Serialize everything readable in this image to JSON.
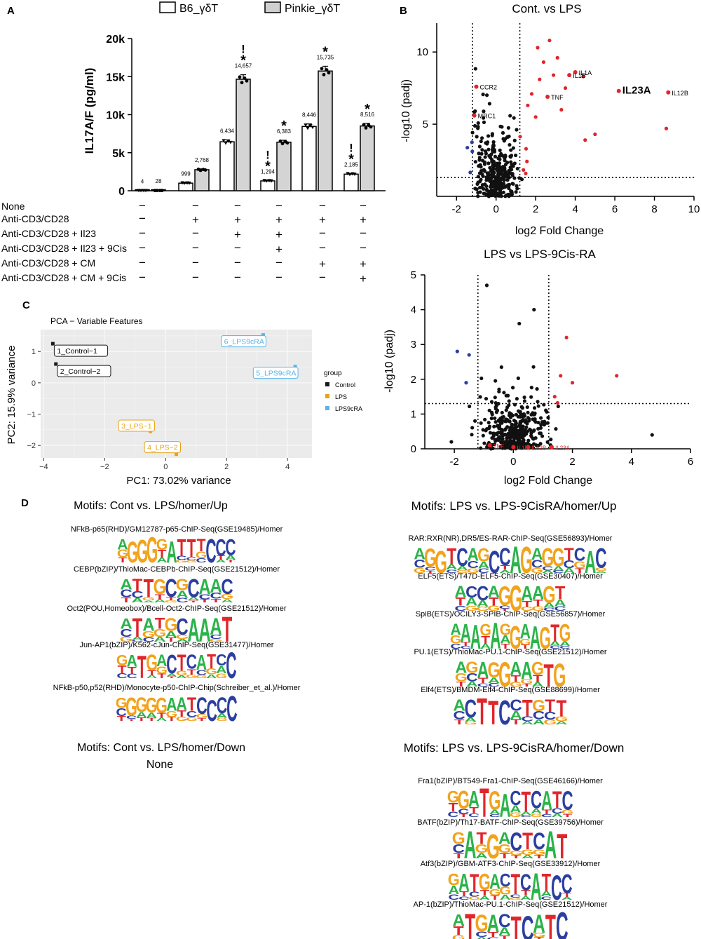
{
  "chart_data": [
    {
      "panel": "A",
      "type": "bar",
      "ylabel": "IL17A/F (pg/ml)",
      "ylim": [
        0,
        20000
      ],
      "yticks": [
        "0",
        "5k",
        "10k",
        "15k",
        "20k"
      ],
      "ytick_values": [
        0,
        5000,
        10000,
        15000,
        20000
      ],
      "legend": [
        "B6_γδT",
        "Pinkie_γδT"
      ],
      "conditions": [
        "None",
        "Anti-CD3/CD28",
        "Anti-CD3/CD28 + Il23",
        "Anti-CD3/CD28 + Il23 + 9Cis",
        "Anti-CD3/CD28 + CM",
        "Anti-CD3/CD28 + CM + 9Cis"
      ],
      "design": [
        [
          "−",
          "−",
          "−",
          "−",
          "−",
          "−"
        ],
        [
          "−",
          "+",
          "+",
          "+",
          "+",
          "+"
        ],
        [
          "−",
          "−",
          "+",
          "+",
          "−",
          "−"
        ],
        [
          "−",
          "−",
          "−",
          "+",
          "−",
          "−"
        ],
        [
          "−",
          "−",
          "−",
          "−",
          "+",
          "+"
        ],
        [
          "−",
          "−",
          "−",
          "−",
          "−",
          "+"
        ]
      ],
      "series": [
        {
          "name": "B6_γδT",
          "values": [
            4,
            999,
            6434,
            1294,
            8446,
            2185
          ],
          "labels": [
            "4",
            "999",
            "6,434",
            "1,294",
            "8,446",
            "2,185"
          ]
        },
        {
          "name": "Pinkie_γδT",
          "values": [
            28,
            2768,
            14657,
            6383,
            15735,
            8516
          ],
          "labels": [
            "28",
            "2,768",
            "14,657",
            "6,383",
            "15,735",
            "8,516"
          ]
        }
      ],
      "markers": [
        {
          "group": 2,
          "series": 1,
          "text": "!"
        },
        {
          "group": 2,
          "series": 1,
          "text": "*"
        },
        {
          "group": 3,
          "series": 0,
          "text": "!"
        },
        {
          "group": 3,
          "series": 0,
          "text": "*"
        },
        {
          "group": 3,
          "series": 1,
          "text": "*"
        },
        {
          "group": 4,
          "series": 1,
          "text": "*"
        },
        {
          "group": 5,
          "series": 0,
          "text": "!"
        },
        {
          "group": 5,
          "series": 0,
          "text": "*"
        },
        {
          "group": 5,
          "series": 1,
          "text": "*"
        }
      ]
    },
    {
      "panel": "B",
      "type": "scatter",
      "title": "Cont. vs LPS",
      "xlabel": "log2 Fold Change",
      "ylabel": "-log10 (padj)",
      "xlim": [
        -3,
        10
      ],
      "ylim": [
        0,
        12
      ],
      "xticks": [
        -2,
        0,
        2,
        4,
        6,
        8,
        10
      ],
      "yticks": [
        5,
        10
      ],
      "vlines": [
        -1.2,
        1.2
      ],
      "hline": 1.3,
      "labeled_points": [
        {
          "x": 6.2,
          "y": 7.3,
          "label": "IL23A"
        },
        {
          "x": 8.7,
          "y": 7.2,
          "label": "IL12B"
        },
        {
          "x": 4.0,
          "y": 8.6,
          "label": "IL1A"
        },
        {
          "x": 3.7,
          "y": 8.4,
          "label": "IL1B"
        },
        {
          "x": 2.6,
          "y": 6.9,
          "label": "TNF"
        },
        {
          "x": -1.0,
          "y": 7.6,
          "label": "CCR2"
        },
        {
          "x": -1.1,
          "y": 5.6,
          "label": "MRC1"
        }
      ]
    },
    {
      "panel": "B2",
      "type": "scatter",
      "title": "LPS vs LPS-9Cis-RA",
      "xlabel": "log2 Fold Change",
      "ylabel": "-log10 (padj)",
      "xlim": [
        -3,
        6
      ],
      "ylim": [
        0,
        5
      ],
      "xticks": [
        -2,
        0,
        2,
        4,
        6
      ],
      "yticks": [
        0,
        1,
        2,
        3,
        4,
        5
      ],
      "vlines": [
        -1.2,
        1.2
      ],
      "hline": 1.3,
      "labeled_points": [
        {
          "x": 1.3,
          "y": 0.05,
          "label": "IL23A"
        },
        {
          "x": -0.8,
          "y": 0.1,
          "label": "TNF"
        },
        {
          "x": 0.0,
          "y": 0.05,
          "label": "IL1B"
        },
        {
          "x": 0.5,
          "y": 0.05,
          "label": "IL12B"
        }
      ]
    },
    {
      "panel": "C",
      "type": "scatter",
      "title": "PCA − Variable Features",
      "xlabel": "PC1: 73.02% variance",
      "ylabel": "PC2: 15.9% variance",
      "xlim": [
        -4.1,
        4.8
      ],
      "ylim": [
        -2.4,
        1.7
      ],
      "xticks": [
        -4,
        -2,
        0,
        2,
        4
      ],
      "yticks": [
        -2,
        -1,
        0,
        1
      ],
      "legend_title": "group",
      "groups": [
        {
          "name": "Control",
          "color": "#1a1a1a"
        },
        {
          "name": "LPS",
          "color": "#e8a317"
        },
        {
          "name": "LPS9cRA",
          "color": "#5ab4e6"
        }
      ],
      "points": [
        {
          "label": "1_Control−1",
          "x": -3.7,
          "y": 1.25,
          "group": "Control"
        },
        {
          "label": "2_Control−2",
          "x": -3.6,
          "y": 0.6,
          "group": "Control"
        },
        {
          "label": "3_LPS−1",
          "x": -0.5,
          "y": -1.55,
          "group": "LPS"
        },
        {
          "label": "4_LPS−2",
          "x": 0.35,
          "y": -2.28,
          "group": "LPS"
        },
        {
          "label": "5_LPS9cRA",
          "x": 4.25,
          "y": 0.52,
          "group": "LPS9cRA"
        },
        {
          "label": "6_LPS9cRA",
          "x": 3.2,
          "y": 1.53,
          "group": "LPS9cRA"
        }
      ]
    }
  ],
  "panels": {
    "a": "A",
    "b": "B",
    "c": "C",
    "d": "D"
  },
  "motifs": {
    "left_up": {
      "title": "Motifs: Cont vs. LPS/homer/Up",
      "items": [
        {
          "label": "NFkB-p65(RHD)/GM12787-p65-ChIP-Seq(GSE19485)/Homer",
          "seq": "AGGGGATTTCCC"
        },
        {
          "label": "CEBP(bZIP)/ThioMac-CEBPb-ChIP-Seq(GSE21512)/Homer",
          "seq": "ATTGCGCAAC"
        },
        {
          "label": "Oct2(POU,Homeobox)/Bcell-Oct2-ChIP-Seq(GSE21512)/Homer",
          "seq": "ATATGCAAAT"
        },
        {
          "label": "Jun-AP1(bZIP)/K562-cJun-ChIP-Seq(GSE31477)/Homer",
          "seq": "GATGACTCATCC"
        },
        {
          "label": "NFkB-p50,p52(RHD)/Monocyte-p50-ChIP-Chip(Schreiber_et_al.)/Homer",
          "seq": "GGGGGAATCCCC"
        }
      ]
    },
    "left_down": {
      "title": "Motifs: Cont vs. LPS/homer/Down",
      "none": "None"
    },
    "right_up": {
      "title": "Motifs: LPS vs. LPS-9CisRA/homer/Up",
      "items": [
        {
          "label": "RAR:RXR(NR),DR5/ES-RAR-ChIP-Seq(GSE56893)/Homer",
          "seq": "AGGTCAGCCAGAGGTCAC"
        },
        {
          "label": "ELF5(ETS)/T47D-ELF5-ChIP-Seq(GSE30407)/Homer",
          "seq": "ACCAGGAAGT"
        },
        {
          "label": "SpiB(ETS)/OCILY3-SPIB-ChIP-Seq(GSE56857)/Homer",
          "seq": "AAAGAGGAAGTG"
        },
        {
          "label": "PU.1(ETS)/ThioMac-PU.1-ChIP-Seq(GSE21512)/Homer",
          "seq": "AGAGGAAGTG"
        },
        {
          "label": "Elf4(ETS)/BMDM-Elf4-ChIP-Seq(GSE88699)/Homer",
          "seq": "ACTTCCTGTT"
        }
      ]
    },
    "right_down": {
      "title": "Motifs: LPS vs. LPS-9CisRA/homer/Down",
      "items": [
        {
          "label": "Fra1(bZIP)/BT549-Fra1-ChIP-Seq(GSE46166)/Homer",
          "seq": "GGATGACTCATC"
        },
        {
          "label": "BATF(bZIP)/Th17-BATF-ChIP-Seq(GSE39756)/Homer",
          "seq": "GATGACTCAT"
        },
        {
          "label": "Atf3(bZIP)/GBM-ATF3-ChIP-Seq(GSE33912)/Homer",
          "seq": "GATGACTCATCC"
        },
        {
          "label": "AP-1(bZIP)/ThioMac-PU.1-ChIP-Seq(GSE21512)/Homer",
          "seq": "ATGACTCATC"
        }
      ]
    }
  },
  "base_colors": {
    "A": "#2bb34a",
    "C": "#2c3fa0",
    "G": "#f2a31b",
    "T": "#e0262b"
  },
  "volcano_colors": {
    "up": "#e0262b",
    "down": "#2c3fa0",
    "ns": "#111111"
  }
}
